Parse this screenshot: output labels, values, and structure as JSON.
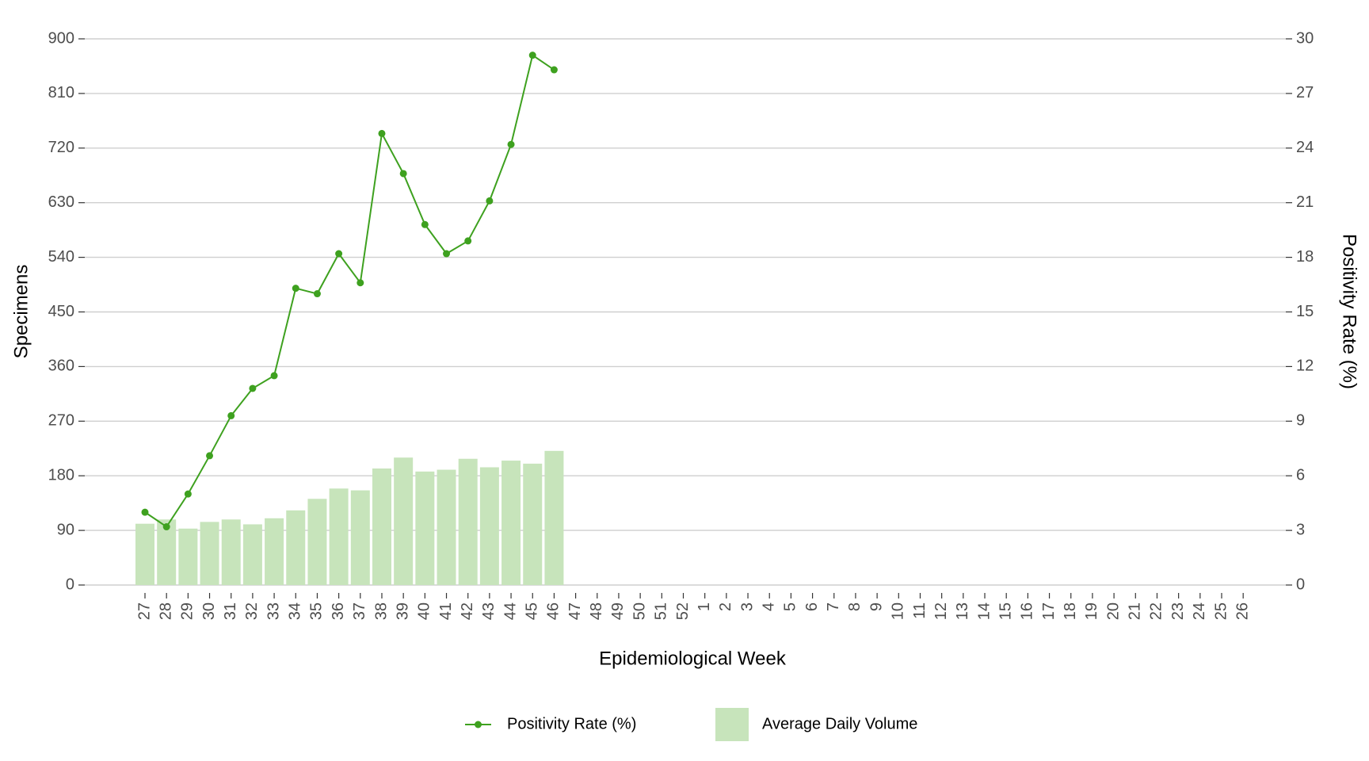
{
  "chart_data": {
    "type": "combo",
    "x_label": "Epidemiological Week",
    "y_label": "Specimens",
    "y2_label": "Positivity Rate (%)",
    "categories": [
      "27",
      "28",
      "29",
      "30",
      "31",
      "32",
      "33",
      "34",
      "35",
      "36",
      "37",
      "38",
      "39",
      "40",
      "41",
      "42",
      "43",
      "44",
      "45",
      "46",
      "47",
      "48",
      "49",
      "50",
      "51",
      "52",
      "1",
      "2",
      "3",
      "4",
      "5",
      "6",
      "7",
      "8",
      "9",
      "10",
      "11",
      "12",
      "13",
      "14",
      "15",
      "16",
      "17",
      "18",
      "19",
      "20",
      "21",
      "22",
      "23",
      "24",
      "25",
      "26"
    ],
    "series": [
      {
        "name": "Positivity Rate (%)",
        "type": "line",
        "axis": "y2",
        "color": "#3ea11f",
        "values": [
          4.0,
          3.2,
          5.0,
          7.1,
          9.3,
          10.8,
          11.5,
          16.3,
          16.0,
          18.2,
          16.6,
          24.8,
          22.6,
          19.8,
          18.2,
          18.9,
          21.1,
          24.2,
          29.1,
          28.3,
          null,
          null,
          null,
          null,
          null,
          null,
          null,
          null,
          null,
          null,
          null,
          null,
          null,
          null,
          null,
          null,
          null,
          null,
          null,
          null,
          null,
          null,
          null,
          null,
          null,
          null,
          null,
          null,
          null,
          null,
          null,
          null
        ]
      },
      {
        "name": "Average Daily Volume",
        "type": "bar",
        "axis": "y",
        "color": "#c7e4bb",
        "values": [
          101,
          108,
          93,
          104,
          108,
          100,
          110,
          123,
          142,
          159,
          156,
          192,
          210,
          187,
          190,
          208,
          194,
          205,
          200,
          221,
          null,
          null,
          null,
          null,
          null,
          null,
          null,
          null,
          null,
          null,
          null,
          null,
          null,
          null,
          null,
          null,
          null,
          null,
          null,
          null,
          null,
          null,
          null,
          null,
          null,
          null,
          null,
          null,
          null,
          null,
          null,
          null
        ]
      }
    ],
    "ylim": [
      0,
      900
    ],
    "yticks": [
      0,
      90,
      180,
      270,
      360,
      450,
      540,
      630,
      720,
      810,
      900
    ],
    "y2lim": [
      0,
      30
    ],
    "y2ticks": [
      0,
      3,
      6,
      9,
      12,
      15,
      18,
      21,
      24,
      27,
      30
    ],
    "grid": true,
    "legend": "bottom"
  }
}
